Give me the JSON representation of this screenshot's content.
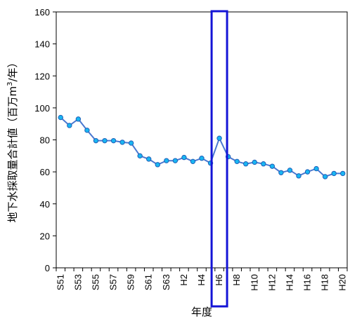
{
  "chart_data": {
    "type": "line",
    "title": "",
    "xlabel": "年度",
    "ylabel": "地下水採取量合計値（百万m³/年）",
    "ylabel_parts": {
      "before": "地下水採取量合計値（百万m",
      "sup": "3",
      "after": "/年）"
    },
    "ylim": [
      0,
      160
    ],
    "yticks": [
      0,
      20,
      40,
      60,
      80,
      100,
      120,
      140,
      160
    ],
    "grid": false,
    "legend": "none",
    "categories": [
      "S51",
      "S52",
      "S53",
      "S54",
      "S55",
      "S56",
      "S57",
      "S58",
      "S59",
      "S60",
      "S61",
      "S62",
      "S63",
      "H1",
      "H2",
      "H3",
      "H4",
      "H5",
      "H6",
      "H7",
      "H8",
      "H9",
      "H10",
      "H11",
      "H12",
      "H13",
      "H14",
      "H15",
      "H16",
      "H17",
      "H18",
      "H19",
      "H20"
    ],
    "x_tick_labels": [
      "S51",
      "S53",
      "S55",
      "S57",
      "S59",
      "S61",
      "S63",
      "H2",
      "H4",
      "H6",
      "H8",
      "H10",
      "H12",
      "H14",
      "H16",
      "H18",
      "H20"
    ],
    "series": [
      {
        "values": [
          94,
          89,
          93,
          86,
          79.5,
          79.5,
          79.5,
          78.5,
          78,
          70,
          68,
          64.5,
          67,
          67,
          69,
          66.5,
          68.5,
          65.5,
          81,
          69.5,
          66.5,
          65,
          66,
          65,
          63.5,
          59.5,
          61,
          57.5,
          60,
          62,
          57,
          59,
          59
        ]
      }
    ],
    "highlight": {
      "category": "H6",
      "color": "#1414d6"
    },
    "colors": {
      "line": "#4a78d0",
      "marker_fill": "#19b6f2",
      "marker_stroke": "#1f5fb8",
      "axis": "#000000"
    }
  }
}
